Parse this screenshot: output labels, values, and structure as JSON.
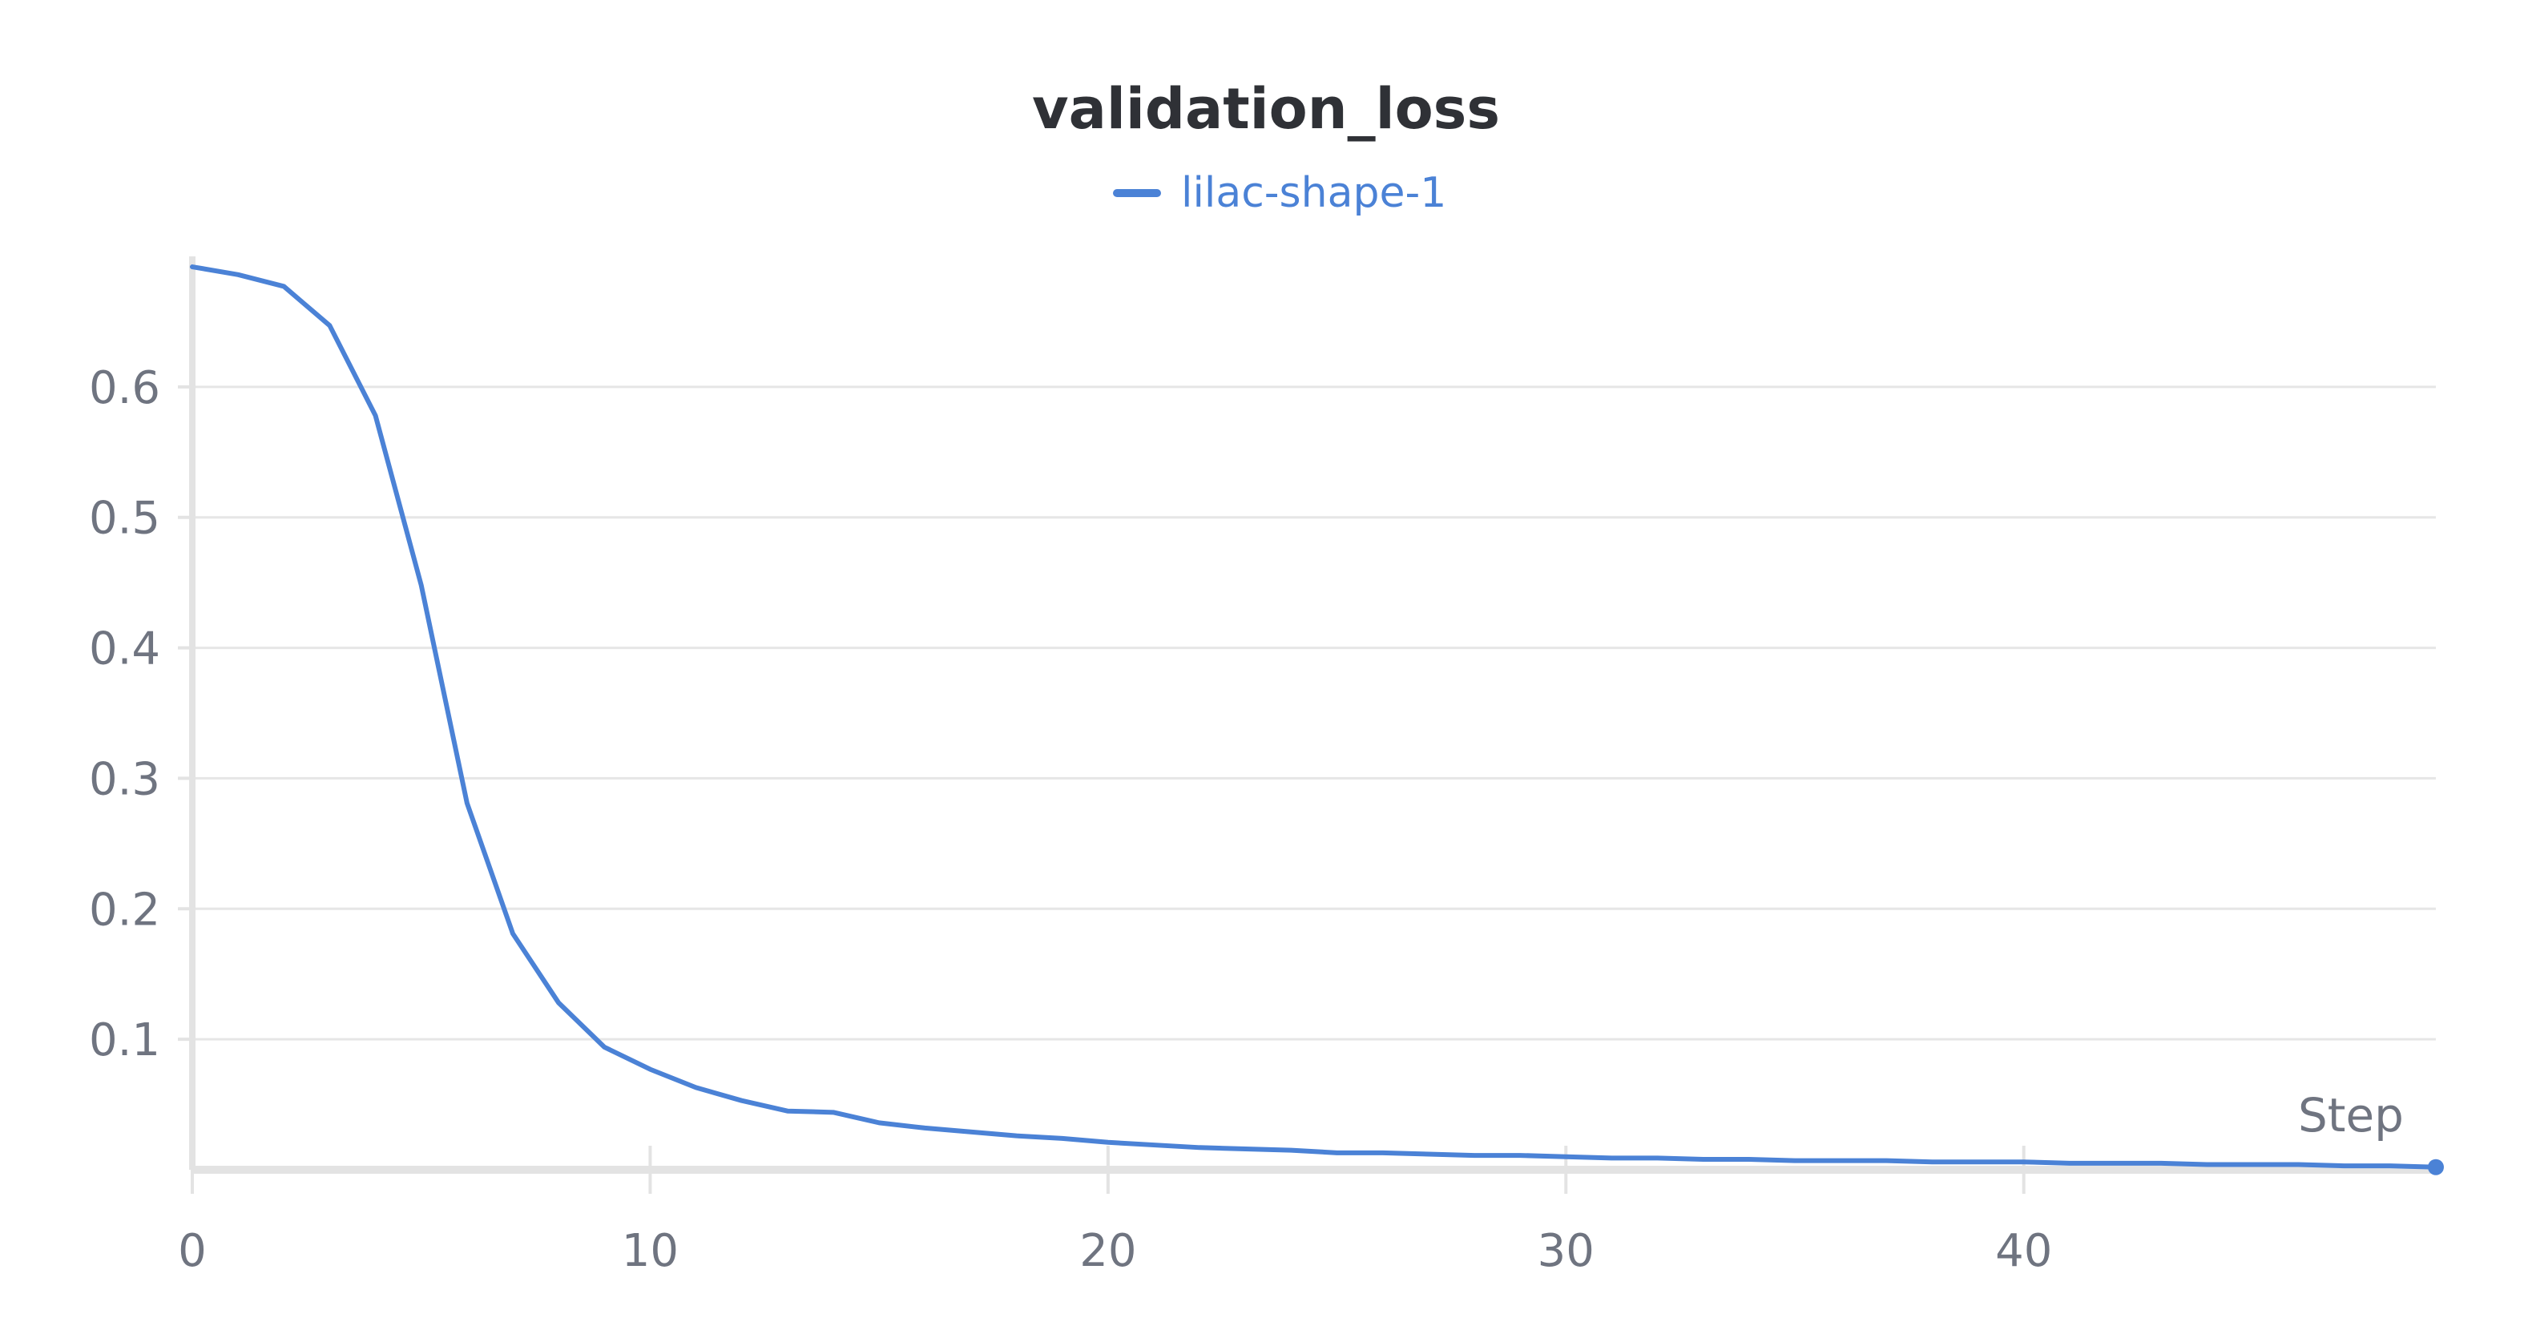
{
  "chart_data": {
    "type": "line",
    "title": "validation_loss",
    "xlabel": "Step",
    "ylabel": "",
    "legend_position": "top-center",
    "grid": true,
    "xlim": [
      0,
      49
    ],
    "ylim": [
      0,
      0.7
    ],
    "x_ticks": [
      0,
      10,
      20,
      30,
      40
    ],
    "y_ticks": [
      0.1,
      0.2,
      0.3,
      0.4,
      0.5,
      0.6
    ],
    "x_tick_labels": [
      "0",
      "10",
      "20",
      "30",
      "40"
    ],
    "y_tick_labels": [
      "0.1",
      "0.2",
      "0.3",
      "0.4",
      "0.5",
      "0.6"
    ],
    "colors": {
      "series": "#4b82d6",
      "grid": "#e6e6e6",
      "axis": "#e3e3e3",
      "text": "#6f7480",
      "title": "#2f3136"
    },
    "series": [
      {
        "name": "lilac-shape-1",
        "x": [
          0,
          1,
          2,
          3,
          4,
          5,
          6,
          7,
          8,
          9,
          10,
          11,
          12,
          13,
          14,
          15,
          16,
          17,
          18,
          19,
          20,
          21,
          22,
          23,
          24,
          25,
          26,
          27,
          28,
          29,
          30,
          31,
          32,
          33,
          34,
          35,
          36,
          37,
          38,
          39,
          40,
          41,
          42,
          43,
          44,
          45,
          46,
          47,
          48,
          49
        ],
        "y": [
          0.692,
          0.686,
          0.677,
          0.647,
          0.578,
          0.448,
          0.281,
          0.181,
          0.128,
          0.094,
          0.077,
          0.063,
          0.053,
          0.045,
          0.044,
          0.036,
          0.032,
          0.029,
          0.026,
          0.024,
          0.021,
          0.019,
          0.017,
          0.016,
          0.015,
          0.013,
          0.013,
          0.012,
          0.011,
          0.011,
          0.01,
          0.009,
          0.009,
          0.008,
          0.008,
          0.007,
          0.007,
          0.007,
          0.006,
          0.006,
          0.006,
          0.005,
          0.005,
          0.005,
          0.004,
          0.004,
          0.004,
          0.003,
          0.003,
          0.002
        ]
      }
    ]
  }
}
